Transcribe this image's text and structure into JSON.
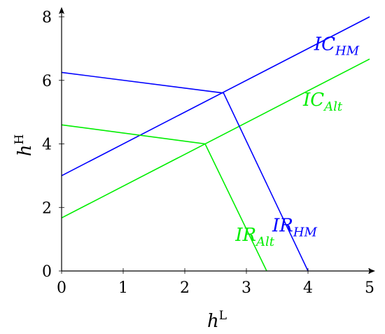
{
  "chart_data": {
    "type": "line",
    "xlim": [
      0,
      5
    ],
    "ylim": [
      0,
      8
    ],
    "xticks": [
      0,
      1,
      2,
      3,
      4,
      5
    ],
    "yticks": [
      0,
      2,
      4,
      6,
      8
    ],
    "xlabel": {
      "base": "h",
      "sup": "L"
    },
    "ylabel": {
      "base": "h",
      "sup": "H"
    },
    "grid": false,
    "series": [
      {
        "name": "IC_HM",
        "color": "#0000ff",
        "points": [
          [
            0,
            3.0
          ],
          [
            5,
            8.0
          ]
        ],
        "label": {
          "base": "IC",
          "sub": "HM",
          "at": [
            4.1,
            6.95
          ]
        }
      },
      {
        "name": "IC_Alt",
        "color": "#00ee00",
        "points": [
          [
            0,
            1.67
          ],
          [
            5,
            6.67
          ]
        ],
        "label": {
          "base": "IC",
          "sub": "Alt",
          "at": [
            3.92,
            5.2
          ]
        }
      },
      {
        "name": "IR_HM",
        "color": "#0000ff",
        "points": [
          [
            0,
            6.25
          ],
          [
            2.63,
            5.6
          ],
          [
            4.0,
            0
          ]
        ],
        "label": {
          "base": "IR",
          "sub": "HM",
          "at": [
            3.42,
            1.25
          ]
        }
      },
      {
        "name": "IR_Alt",
        "color": "#00ee00",
        "points": [
          [
            0,
            4.6
          ],
          [
            2.33,
            4.0
          ],
          [
            3.33,
            0
          ]
        ],
        "label": {
          "base": "IR",
          "sub": "Alt",
          "at": [
            2.82,
            0.95
          ]
        }
      }
    ]
  }
}
